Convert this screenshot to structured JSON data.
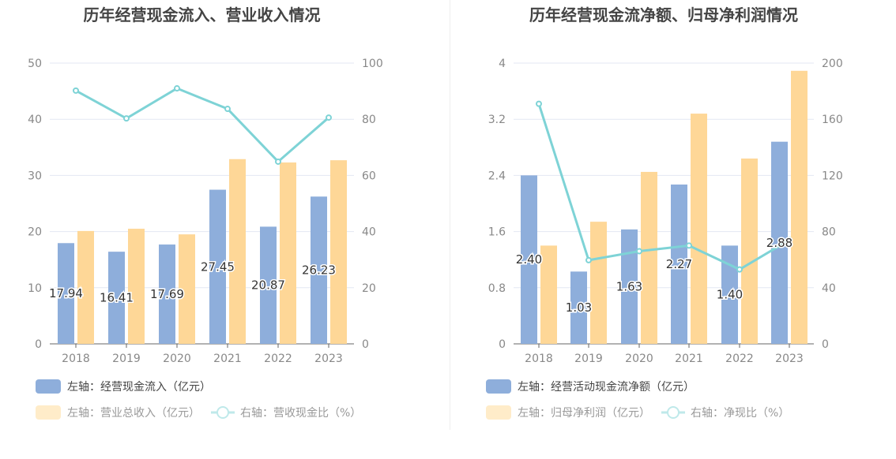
{
  "chart_data": [
    {
      "type": "bar",
      "title": "历年经营现金流入、营业收入情况",
      "categories": [
        "2018",
        "2019",
        "2020",
        "2021",
        "2022",
        "2023"
      ],
      "left_axis": {
        "ylim": [
          0,
          50
        ],
        "ticks": [
          0,
          10,
          20,
          30,
          40,
          50
        ]
      },
      "right_axis": {
        "ylim": [
          0,
          100
        ],
        "ticks": [
          0,
          20,
          40,
          60,
          80,
          100
        ]
      },
      "series": [
        {
          "name": "左轴：经营现金流入（亿元）",
          "type": "bar",
          "axis": "left",
          "color": "#8eaedb",
          "values": [
            17.94,
            16.41,
            17.69,
            27.45,
            20.87,
            26.23
          ],
          "labels": [
            "17.94",
            "16.41",
            "17.69",
            "27.45",
            "20.87",
            "26.23"
          ]
        },
        {
          "name": "左轴：营业总收入（亿元）",
          "type": "bar",
          "axis": "left",
          "color": "#fed797",
          "values": [
            20.1,
            20.5,
            19.5,
            32.9,
            32.3,
            32.7
          ]
        },
        {
          "name": "右轴：营收现金比（%）",
          "type": "line",
          "axis": "right",
          "color": "#7ed3d6",
          "values": [
            90.2,
            80.3,
            91.0,
            83.7,
            64.9,
            80.6
          ]
        }
      ]
    },
    {
      "type": "bar",
      "title": "历年经营现金流净额、归母净利润情况",
      "categories": [
        "2018",
        "2019",
        "2020",
        "2021",
        "2022",
        "2023"
      ],
      "left_axis": {
        "ylim": [
          0,
          4
        ],
        "ticks": [
          "0",
          "0.8",
          "1.6",
          "2.4",
          "3.2",
          "4"
        ]
      },
      "right_axis": {
        "ylim": [
          0,
          200
        ],
        "ticks": [
          0,
          40,
          80,
          120,
          160,
          200
        ]
      },
      "series": [
        {
          "name": "左轴：经营活动现金流净额（亿元）",
          "type": "bar",
          "axis": "left",
          "color": "#8eaedb",
          "values": [
            2.4,
            1.03,
            1.63,
            2.27,
            1.4,
            2.88
          ],
          "labels": [
            "2.40",
            "1.03",
            "1.63",
            "2.27",
            "1.40",
            "2.88"
          ]
        },
        {
          "name": "左轴：归母净利润（亿元）",
          "type": "bar",
          "axis": "left",
          "color": "#fed797",
          "values": [
            1.4,
            1.74,
            2.45,
            3.28,
            2.64,
            3.89
          ]
        },
        {
          "name": "右轴：净现比（%）",
          "type": "line",
          "axis": "right",
          "color": "#7ed3d6",
          "values": [
            171,
            59.6,
            66,
            70,
            53,
            74
          ]
        }
      ]
    }
  ]
}
